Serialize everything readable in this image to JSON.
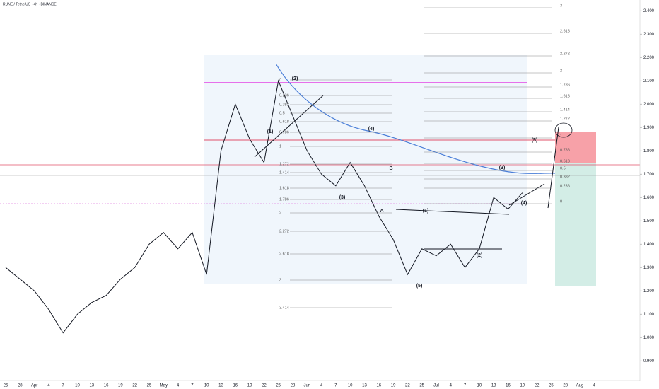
{
  "chart_data": {
    "type": "line",
    "title": "RUNE / TetherUS · 4h · BINANCE",
    "categories": [
      "25",
      "28",
      "Apr",
      "4",
      "7",
      "10",
      "13",
      "16",
      "19",
      "22",
      "25",
      "May",
      "4",
      "7",
      "10",
      "13",
      "16",
      "19",
      "22",
      "25",
      "28",
      "Jun",
      "4",
      "7",
      "10",
      "13",
      "16",
      "19",
      "22",
      "25",
      "Jul",
      "4",
      "7",
      "10",
      "13",
      "16",
      "19",
      "22",
      "25",
      "28",
      "Aug",
      "4"
    ],
    "values": [
      1.3,
      1.25,
      1.2,
      1.12,
      1.02,
      1.1,
      1.15,
      1.18,
      1.25,
      1.3,
      1.4,
      1.45,
      1.38,
      1.45,
      1.27,
      1.8,
      2.0,
      1.85,
      1.75,
      2.1,
      1.95,
      1.8,
      1.7,
      1.65,
      1.75,
      1.65,
      1.52,
      1.42,
      1.27,
      1.38,
      1.35,
      1.4,
      1.3,
      1.38,
      1.6,
      1.55,
      1.62,
      null,
      null,
      null,
      null,
      null
    ],
    "color": "#131722",
    "ylim": [
      0.84,
      2.44
    ],
    "yticks": [
      {
        "value": 0.9,
        "label": "0.900"
      },
      {
        "value": 1.0,
        "label": "1.000"
      },
      {
        "value": 1.1,
        "label": "1.100"
      },
      {
        "value": 1.2,
        "label": "1.200"
      },
      {
        "value": 1.3,
        "label": "1.300"
      },
      {
        "value": 1.4,
        "label": "1.400"
      },
      {
        "value": 1.5,
        "label": "1.500"
      },
      {
        "value": 1.6,
        "label": "1.600"
      },
      {
        "value": 1.7,
        "label": "1.700"
      },
      {
        "value": 1.8,
        "label": "1.800"
      },
      {
        "value": 1.9,
        "label": "1.900"
      },
      {
        "value": 2.0,
        "label": "2.000"
      },
      {
        "value": 2.1,
        "label": "2.100"
      },
      {
        "value": 2.2,
        "label": "2.200"
      },
      {
        "value": 2.3,
        "label": "2.300"
      },
      {
        "value": 2.4,
        "label": "2.400"
      }
    ],
    "grid": false,
    "fib_right": [
      "3",
      "2.618",
      "2.272",
      "2",
      "1.786",
      "1.618",
      "1.414",
      "1.272",
      "1",
      "0.786",
      "0.618",
      "0.5",
      "0.382",
      "0.236",
      "0"
    ],
    "fib_left": [
      "0",
      "0.236",
      "0.382",
      "0.5",
      "0.618",
      "0.786",
      "1",
      "1.272",
      "1.414",
      "1.618",
      "1.786",
      "2",
      "2.272",
      "2.618",
      "3",
      "3.414"
    ],
    "waves": [
      "(1)",
      "(2)",
      "(3)",
      "(4)",
      "(5)",
      "A",
      "B",
      "(1)",
      "(2)",
      "(3)",
      "(4)",
      "(5)"
    ]
  }
}
